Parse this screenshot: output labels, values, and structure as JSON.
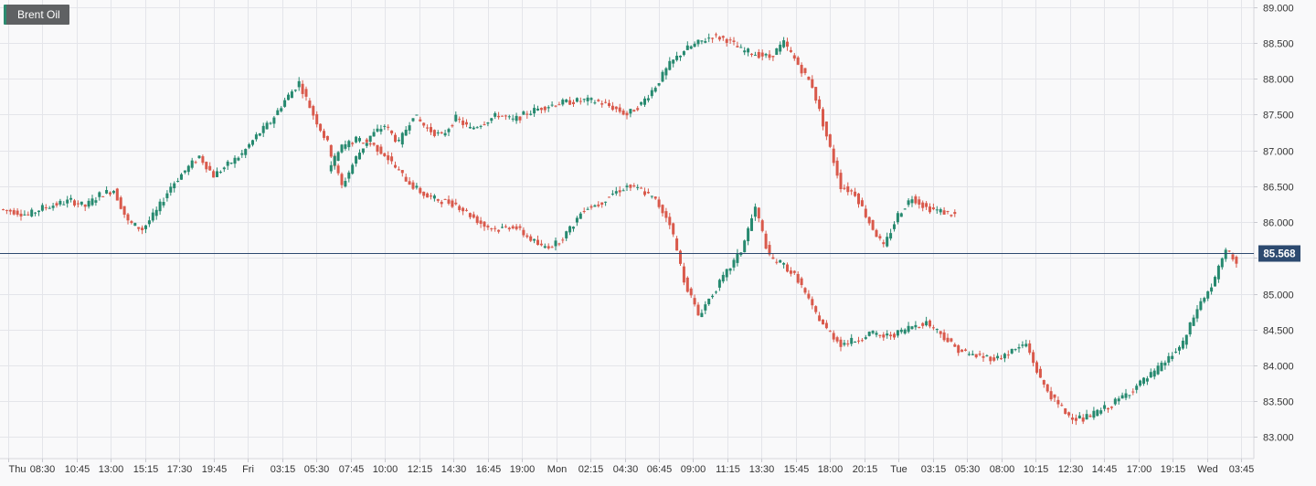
{
  "symbol": {
    "label": "Brent Oil"
  },
  "price_badge": {
    "label": "85.568"
  },
  "colors": {
    "up": "#26896f",
    "down": "#d9594b",
    "price_line": "#2d4a70",
    "badge_bg": "#2d4a70",
    "grid": "#e4e5ea",
    "axis_text": "#333333"
  },
  "chart_data": {
    "type": "candlestick",
    "title": "Brent Oil",
    "xlabel": "",
    "ylabel": "",
    "ylim": [
      82.7,
      89.1
    ],
    "y_ticks": [
      "89.000",
      "88.500",
      "88.000",
      "87.500",
      "87.000",
      "86.500",
      "86.000",
      "85.500",
      "85.000",
      "84.500",
      "84.000",
      "83.500",
      "83.000"
    ],
    "x_ticks": [
      "Thu",
      "08:30",
      "10:45",
      "13:00",
      "15:15",
      "17:30",
      "19:45",
      "Fri",
      "03:15",
      "05:30",
      "07:45",
      "10:00",
      "12:15",
      "14:30",
      "16:45",
      "19:00",
      "Mon",
      "02:15",
      "04:30",
      "06:45",
      "09:00",
      "11:15",
      "13:30",
      "15:45",
      "18:00",
      "20:15",
      "Tue",
      "03:15",
      "05:30",
      "08:00",
      "10:15",
      "12:30",
      "14:45",
      "17:00",
      "19:15",
      "Wed",
      "03:45"
    ],
    "last_price": 85.568,
    "grid": true,
    "series": [
      {
        "start": 0,
        "path": [
          86.18,
          86.15,
          86.1,
          86.2,
          86.25,
          86.3,
          86.22,
          86.38,
          86.45,
          86.0,
          85.9,
          86.15,
          86.5,
          86.72,
          86.92,
          86.65,
          86.8,
          86.95,
          87.2,
          87.4,
          87.7,
          87.95,
          87.5,
          87.1,
          86.5,
          86.9,
          87.2,
          87.35,
          87.1,
          87.5,
          87.3,
          87.2,
          87.45,
          87.3,
          87.4,
          87.5,
          87.42,
          87.52,
          87.6,
          87.65,
          87.68,
          87.7,
          87.68,
          87.6,
          87.5,
          87.65,
          87.9,
          88.2,
          88.4,
          88.5,
          88.6,
          88.55,
          88.4,
          88.35,
          88.3,
          88.5,
          88.2,
          87.9,
          87.2,
          86.5,
          86.4,
          86.0,
          85.65,
          86.1,
          86.35,
          86.2,
          86.15,
          86.1
        ]
      },
      {
        "start": 92,
        "path": [
          86.7,
          87.05,
          87.15,
          87.1,
          86.95,
          86.7,
          86.5,
          86.35,
          86.3,
          86.25,
          86.1,
          85.95,
          85.9,
          85.95,
          85.8,
          85.65,
          85.7,
          85.9,
          86.2,
          86.25,
          86.4,
          86.5,
          86.45,
          86.3,
          86.0,
          85.2,
          84.7,
          85.0,
          85.3,
          85.6,
          86.2,
          85.5,
          85.4,
          85.2,
          84.8,
          84.5,
          84.3,
          84.35,
          84.45,
          84.4,
          84.45,
          84.55,
          84.6,
          84.45,
          84.25,
          84.15,
          84.12,
          84.1,
          84.2,
          84.3,
          83.8,
          83.5,
          83.3,
          83.25,
          83.35,
          83.45,
          83.6,
          83.75,
          83.9,
          84.1,
          84.3,
          84.8,
          85.1,
          85.6,
          85.4,
          85.05,
          85.2,
          85.3,
          85.2,
          84.95,
          85.3,
          85.5,
          85.55,
          85.5,
          85.45,
          85.6,
          85.7,
          85.5,
          85.4,
          85.57
        ]
      }
    ]
  }
}
